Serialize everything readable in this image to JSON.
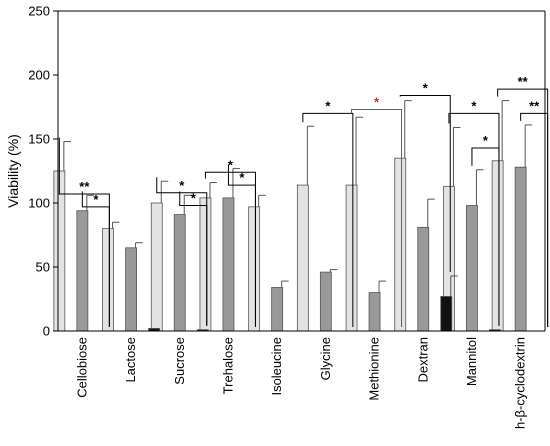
{
  "chart_data": {
    "type": "bar",
    "title": "",
    "xlabel": "",
    "ylabel": "Viability (%)",
    "ylim": [
      0,
      250
    ],
    "yticks": [
      0,
      50,
      100,
      150,
      200,
      250
    ],
    "grid": false,
    "legend": "none",
    "categories": [
      "Cellobiose",
      "Lactose",
      "Sucrose",
      "Trehalose",
      "Isoleucine",
      "Glycine",
      "Methionine",
      "Dextran",
      "Mannitol",
      "h-β-cyclodextrin"
    ],
    "series_colors": [
      "#e3e3e3",
      "#999999",
      "#111111"
    ],
    "series": [
      {
        "values": [
          125,
          80,
          100,
          104,
          97,
          114,
          114,
          135,
          113,
          133
        ],
        "errors": [
          23,
          5,
          17,
          12,
          9,
          46,
          53,
          45,
          46,
          47
        ]
      },
      {
        "values": [
          94,
          65,
          91,
          104,
          34,
          46,
          30,
          81,
          98,
          128
        ],
        "errors": [
          12,
          4,
          15,
          23,
          5,
          2,
          9,
          22,
          28,
          33
        ]
      },
      {
        "values": [
          0,
          2,
          1,
          0,
          0,
          0,
          0,
          27,
          1,
          0
        ],
        "errors": [
          0,
          0,
          0,
          0,
          0,
          0,
          0,
          16,
          0,
          0
        ]
      }
    ],
    "significance": [
      {
        "category": 0,
        "from": 0,
        "to": 2,
        "y": 107,
        "label": "**",
        "color": "#000000"
      },
      {
        "category": 0,
        "from": 1,
        "to": 2,
        "y": 97,
        "label": "*",
        "color": "#000000"
      },
      {
        "category": 2,
        "from": 0,
        "to": 2,
        "y": 108,
        "label": "*",
        "color": "#000000"
      },
      {
        "category": 2,
        "from": 1,
        "to": 2,
        "y": 98,
        "label": "*",
        "color": "#000000"
      },
      {
        "category": 3,
        "from": 0,
        "to": 2,
        "y": 124,
        "label": "*",
        "color": "#000000"
      },
      {
        "category": 3,
        "from": 1,
        "to": 2,
        "y": 114,
        "label": "*",
        "color": "#000000"
      },
      {
        "category": 5,
        "from": 0,
        "to": 2,
        "y": 170,
        "label": "*",
        "color": "#000000"
      },
      {
        "category": 6,
        "from": 0,
        "to": 2,
        "y": 173,
        "label": "*",
        "color": "#e8262b"
      },
      {
        "category": 7,
        "from": 0,
        "to": 2,
        "y": 184,
        "label": "*",
        "color": "#000000"
      },
      {
        "category": 8,
        "from": 0,
        "to": 2,
        "y": 170,
        "label": "*",
        "color": "#000000"
      },
      {
        "category": 8,
        "from": 1,
        "to": 2,
        "y": 143,
        "label": "*",
        "color": "#000000"
      },
      {
        "category": 9,
        "from": 0,
        "to": 2,
        "y": 189,
        "label": "**",
        "color": "#000000"
      },
      {
        "category": 9,
        "from": 1,
        "to": 2,
        "y": 170,
        "label": "**",
        "color": "#000000"
      }
    ]
  }
}
